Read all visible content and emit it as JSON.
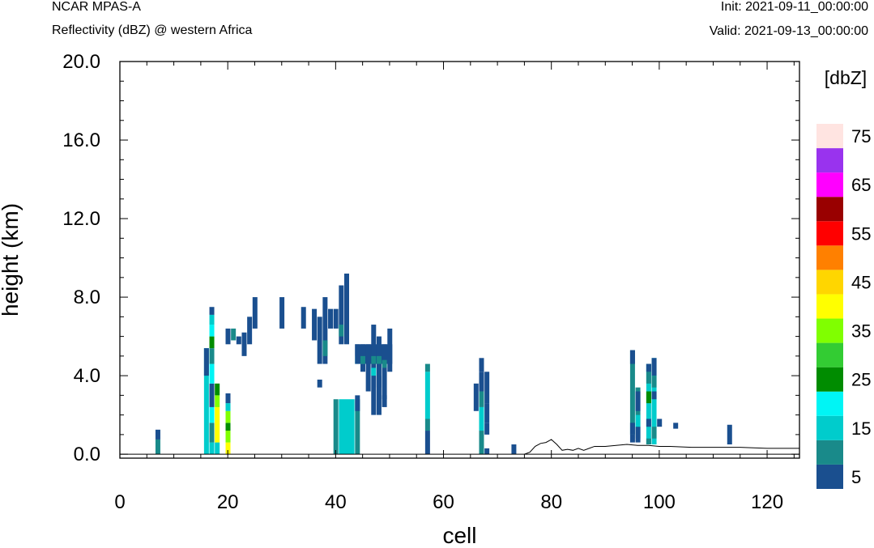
{
  "header": {
    "model": "NCAR MPAS-A",
    "field": "Reflectivity (dBZ) @ western Africa",
    "init": "Init: 2021-09-11_00:00:00",
    "valid": "Valid: 2021-09-13_00:00:00"
  },
  "colors": {
    "levels": [
      "#1a4f8f",
      "#198a8a",
      "#00cccc",
      "#00f5f5",
      "#008c00",
      "#33cc33",
      "#80ff00",
      "#ffff00",
      "#ffd600",
      "#ff8000",
      "#ff0000",
      "#990000",
      "#ff00ff",
      "#9933ee",
      "#ffe4e1"
    ]
  },
  "chart_data": {
    "type": "heatmap",
    "title": "",
    "xlabel": "cell",
    "ylabel": "height (km)",
    "xlim": [
      0,
      126
    ],
    "ylim": [
      -0.2,
      20
    ],
    "x_ticks": [
      "0",
      "20",
      "40",
      "60",
      "80",
      "100",
      "120"
    ],
    "y_ticks": [
      "0.0",
      "4.0",
      "8.0",
      "12.0",
      "16.0",
      "20.0"
    ],
    "colorbar": {
      "title": "[dbZ]",
      "labels": [
        "5",
        "15",
        "25",
        "35",
        "45",
        "55",
        "65",
        "75"
      ],
      "levels": [
        5,
        10,
        15,
        20,
        25,
        30,
        35,
        40,
        45,
        50,
        55,
        60,
        65,
        70,
        75
      ]
    },
    "terrain": [
      [
        75,
        0
      ],
      [
        76,
        0.1
      ],
      [
        77,
        0.4
      ],
      [
        78,
        0.55
      ],
      [
        79,
        0.6
      ],
      [
        80,
        0.75
      ],
      [
        81,
        0.5
      ],
      [
        82,
        0.2
      ],
      [
        83,
        0.25
      ],
      [
        84,
        0.2
      ],
      [
        85,
        0.3
      ],
      [
        86,
        0.2
      ],
      [
        87,
        0.3
      ],
      [
        88,
        0.4
      ],
      [
        90,
        0.4
      ],
      [
        92,
        0.45
      ],
      [
        94,
        0.5
      ],
      [
        96,
        0.45
      ],
      [
        98,
        0.45
      ],
      [
        100,
        0.4
      ],
      [
        102,
        0.4
      ],
      [
        106,
        0.35
      ],
      [
        110,
        0.35
      ],
      [
        115,
        0.35
      ],
      [
        120,
        0.3
      ],
      [
        126,
        0.3
      ]
    ],
    "columns": [
      {
        "x": 7,
        "v": [
          10,
          10,
          5
        ]
      },
      {
        "x": 16,
        "v": [
          15,
          15,
          15,
          15,
          15,
          15,
          15,
          15,
          15,
          10,
          10,
          5
        ]
      },
      {
        "x": 17,
        "v": [
          15,
          20,
          15,
          10,
          10,
          15,
          20,
          20,
          20,
          20,
          20,
          15,
          15,
          10,
          10,
          20,
          25,
          25,
          15,
          15,
          15,
          5
        ]
      },
      {
        "x": 18,
        "v": [
          40,
          40,
          40,
          40,
          40,
          40,
          35,
          25
        ]
      },
      {
        "x": 20,
        "v": [
          40,
          40,
          35,
          25,
          35,
          15,
          15,
          5
        ]
      },
      {
        "x": 21,
        "v": [
          5,
          5,
          5,
          15,
          10,
          5
        ]
      },
      {
        "x": 37,
        "v": [
          5,
          5,
          5,
          5,
          5,
          5,
          5,
          5,
          5,
          5,
          5,
          5,
          5,
          5,
          5,
          5,
          5,
          5,
          5,
          5,
          5,
          5,
          5,
          5,
          5,
          5,
          5,
          5,
          5,
          5,
          5,
          5,
          5
        ]
      }
    ],
    "blocks": [
      [
        6.6,
        7.5,
        0.0,
        0.75,
        10
      ],
      [
        6.6,
        7.5,
        0.75,
        1.25,
        5
      ],
      [
        15.6,
        16.5,
        0.0,
        5.4,
        15
      ],
      [
        15.6,
        16.5,
        4.0,
        5.4,
        5
      ],
      [
        16.6,
        17.5,
        0.0,
        0.6,
        15
      ],
      [
        16.6,
        17.5,
        0.6,
        1.6,
        10
      ],
      [
        16.6,
        17.5,
        1.6,
        2.4,
        20
      ],
      [
        16.6,
        17.5,
        2.4,
        3.6,
        5
      ],
      [
        16.6,
        17.5,
        3.6,
        4.6,
        20
      ],
      [
        16.6,
        17.5,
        4.6,
        5.4,
        10
      ],
      [
        16.6,
        17.5,
        5.4,
        6.0,
        25
      ],
      [
        16.6,
        17.5,
        6.0,
        6.6,
        20
      ],
      [
        16.6,
        17.5,
        6.6,
        7.1,
        15
      ],
      [
        16.6,
        17.5,
        7.1,
        7.5,
        5
      ],
      [
        17.6,
        18.5,
        0.0,
        0.6,
        15
      ],
      [
        17.6,
        18.5,
        0.6,
        2.4,
        40
      ],
      [
        17.6,
        18.5,
        2.4,
        3.0,
        35
      ],
      [
        17.6,
        18.5,
        3.0,
        3.6,
        25
      ],
      [
        19.6,
        20.5,
        0.0,
        0.6,
        40
      ],
      [
        19.6,
        20.5,
        0.6,
        1.2,
        35
      ],
      [
        19.6,
        20.5,
        1.2,
        1.6,
        25
      ],
      [
        19.6,
        20.5,
        1.6,
        2.2,
        35
      ],
      [
        19.6,
        20.5,
        2.2,
        2.6,
        15
      ],
      [
        19.6,
        20.5,
        2.6,
        3.1,
        5
      ],
      [
        19.6,
        20.5,
        5.6,
        6.4,
        5
      ],
      [
        20.6,
        21.5,
        5.8,
        6.4,
        10
      ],
      [
        21.6,
        22.5,
        5.6,
        6.0,
        5
      ],
      [
        22.6,
        23.5,
        5.0,
        6.2,
        5
      ],
      [
        23.6,
        24.5,
        5.6,
        7.0,
        5
      ],
      [
        24.6,
        25.5,
        6.4,
        8.0,
        5
      ],
      [
        29.6,
        30.5,
        6.4,
        8.0,
        5
      ],
      [
        33.6,
        34.5,
        6.4,
        7.5,
        5
      ],
      [
        35.6,
        36.5,
        5.8,
        7.4,
        5
      ],
      [
        36.6,
        37.5,
        3.4,
        3.8,
        5
      ],
      [
        36.6,
        37.5,
        4.6,
        7.0,
        5
      ],
      [
        37.6,
        38.5,
        4.6,
        8.0,
        5
      ],
      [
        37.6,
        38.5,
        5.0,
        5.8,
        10
      ],
      [
        38.6,
        39.5,
        6.4,
        7.4,
        5
      ],
      [
        39.6,
        40.5,
        6.4,
        7.4,
        5
      ],
      [
        40.6,
        41.5,
        5.6,
        8.6,
        5
      ],
      [
        40.6,
        41.5,
        6.0,
        6.6,
        10
      ],
      [
        41.6,
        42.5,
        5.6,
        9.2,
        5
      ],
      [
        39.6,
        40.5,
        0.0,
        2.8,
        10
      ],
      [
        40.6,
        43.5,
        0.0,
        2.8,
        15
      ],
      [
        43.6,
        44.5,
        0.0,
        2.8,
        10
      ],
      [
        43.6,
        44.5,
        2.2,
        3.0,
        5
      ],
      [
        43.6,
        44.5,
        4.6,
        5.0,
        15
      ],
      [
        43.6,
        44.5,
        5.0,
        5.6,
        5
      ],
      [
        44.6,
        45.5,
        4.6,
        5.6,
        5
      ],
      [
        44.6,
        45.5,
        4.2,
        4.6,
        5
      ],
      [
        43.6,
        50.5,
        4.6,
        5.6,
        5
      ],
      [
        45.6,
        46.5,
        3.2,
        5.6,
        5
      ],
      [
        46.6,
        47.5,
        2.0,
        6.6,
        5
      ],
      [
        47.6,
        48.5,
        2.0,
        6.0,
        5
      ],
      [
        48.6,
        49.5,
        2.8,
        5.6,
        5
      ],
      [
        49.6,
        50.5,
        4.2,
        6.4,
        5
      ],
      [
        44.6,
        45.5,
        4.6,
        5.0,
        10
      ],
      [
        46.6,
        47.5,
        4.6,
        5.0,
        10
      ],
      [
        47.6,
        48.5,
        4.6,
        5.0,
        10
      ],
      [
        48.6,
        49.5,
        4.4,
        4.8,
        10
      ],
      [
        46.6,
        47.5,
        4.0,
        4.4,
        15
      ],
      [
        47.6,
        48.5,
        3.4,
        4.0,
        5
      ],
      [
        48.6,
        49.5,
        2.4,
        3.0,
        5
      ],
      [
        56.6,
        57.5,
        0.0,
        1.2,
        5
      ],
      [
        56.6,
        57.5,
        1.2,
        1.8,
        10
      ],
      [
        56.6,
        57.5,
        1.8,
        4.2,
        15
      ],
      [
        56.6,
        57.5,
        4.2,
        4.6,
        10
      ],
      [
        65.6,
        66.5,
        2.2,
        3.6,
        5
      ],
      [
        66.6,
        67.5,
        0.0,
        1.2,
        10
      ],
      [
        66.6,
        67.5,
        1.2,
        2.4,
        15
      ],
      [
        66.6,
        67.5,
        2.4,
        3.2,
        10
      ],
      [
        66.6,
        67.5,
        3.2,
        4.2,
        5
      ],
      [
        66.6,
        67.5,
        4.2,
        4.9,
        5
      ],
      [
        67.6,
        68.5,
        0.0,
        0.3,
        5
      ],
      [
        67.6,
        68.5,
        1.6,
        2.6,
        5
      ],
      [
        67.6,
        68.5,
        2.6,
        4.2,
        5
      ],
      [
        67.6,
        68.5,
        1.0,
        1.6,
        5
      ],
      [
        72.6,
        73.5,
        0.0,
        0.5,
        5
      ],
      [
        94.6,
        95.5,
        1.0,
        5.3,
        10
      ],
      [
        94.6,
        95.5,
        1.0,
        1.6,
        5
      ],
      [
        94.6,
        95.5,
        4.6,
        5.3,
        5
      ],
      [
        94.6,
        95.5,
        0.6,
        1.0,
        5
      ],
      [
        95.6,
        96.5,
        0.8,
        3.4,
        10
      ],
      [
        95.6,
        96.5,
        0.6,
        1.4,
        5
      ],
      [
        95.6,
        96.5,
        2.2,
        3.2,
        5
      ],
      [
        95.6,
        96.5,
        1.4,
        2.0,
        15
      ],
      [
        97.6,
        98.5,
        0.5,
        4.6,
        15
      ],
      [
        97.6,
        98.5,
        3.6,
        4.6,
        10
      ],
      [
        97.6,
        98.5,
        2.6,
        3.2,
        25
      ],
      [
        97.6,
        98.5,
        0.5,
        0.8,
        10
      ],
      [
        97.6,
        98.5,
        1.4,
        1.8,
        5
      ],
      [
        97.6,
        98.5,
        4.2,
        4.6,
        5
      ],
      [
        98.6,
        99.5,
        0.5,
        4.9,
        15
      ],
      [
        98.6,
        99.5,
        4.0,
        4.9,
        5
      ],
      [
        98.6,
        99.5,
        0.8,
        1.4,
        10
      ],
      [
        98.6,
        99.5,
        2.8,
        3.2,
        5
      ],
      [
        98.6,
        99.5,
        3.4,
        4.0,
        10
      ],
      [
        99.6,
        100.5,
        1.4,
        1.8,
        5
      ],
      [
        102.6,
        103.5,
        1.3,
        1.6,
        5
      ],
      [
        112.6,
        113.5,
        0.5,
        1.5,
        5
      ]
    ]
  }
}
